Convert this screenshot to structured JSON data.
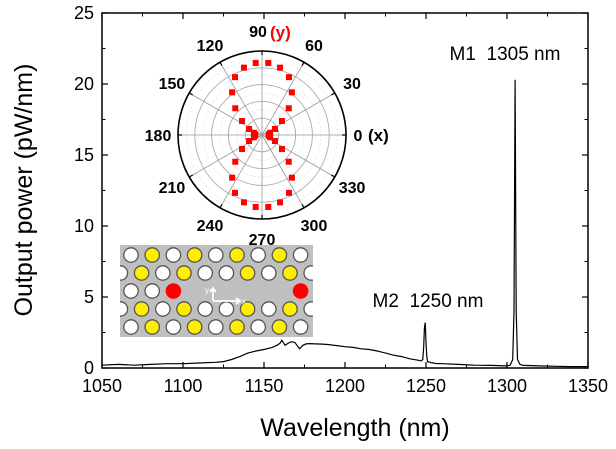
{
  "chart_data": [
    {
      "type": "line",
      "xlabel": "Wavelength (nm)",
      "ylabel": "Output  power (pW/nm)",
      "xlim": [
        1050,
        1350
      ],
      "ylim": [
        0,
        25
      ],
      "xticks": [
        1050,
        1100,
        1150,
        1200,
        1250,
        1300,
        1350
      ],
      "yticks": [
        0,
        5,
        10,
        15,
        20,
        25
      ],
      "grid": false,
      "series": [
        {
          "color": "#000000",
          "x": [
            1050,
            1060,
            1070,
            1080,
            1090,
            1100,
            1110,
            1120,
            1125,
            1130,
            1135,
            1140,
            1145,
            1150,
            1155,
            1158,
            1160,
            1161,
            1163,
            1165,
            1167,
            1169,
            1171,
            1172,
            1174,
            1176,
            1178,
            1182,
            1186,
            1190,
            1195,
            1200,
            1205,
            1210,
            1215,
            1220,
            1225,
            1230,
            1235,
            1240,
            1245,
            1247,
            1248,
            1248.6,
            1249,
            1249.5,
            1250,
            1250.5,
            1251,
            1253,
            1256,
            1260,
            1270,
            1280,
            1290,
            1300,
            1302,
            1303.5,
            1304.3,
            1305,
            1305.7,
            1306.5,
            1308,
            1310,
            1320,
            1330,
            1340,
            1350
          ],
          "y": [
            0.2,
            0.25,
            0.2,
            0.25,
            0.3,
            0.3,
            0.35,
            0.4,
            0.45,
            0.6,
            0.8,
            1.05,
            1.2,
            1.3,
            1.45,
            1.6,
            1.75,
            1.95,
            1.6,
            1.75,
            1.85,
            1.8,
            1.5,
            1.35,
            1.6,
            1.7,
            1.72,
            1.7,
            1.68,
            1.65,
            1.58,
            1.5,
            1.45,
            1.35,
            1.3,
            1.2,
            1.05,
            0.9,
            0.8,
            0.65,
            0.55,
            0.5,
            0.6,
            1.5,
            2.8,
            3.2,
            1.8,
            0.8,
            0.45,
            0.38,
            0.32,
            0.3,
            0.25,
            0.2,
            0.18,
            0.15,
            0.2,
            0.6,
            4.0,
            20.3,
            4.0,
            0.6,
            0.25,
            0.18,
            0.15,
            0.12,
            0.1,
            0.1
          ]
        }
      ],
      "annotations": [
        {
          "text": "M1  1305 nm",
          "x": 1305,
          "y": 20.3
        },
        {
          "text": "M2  1250 nm",
          "x": 1250,
          "y": 3.2
        }
      ]
    },
    {
      "type": "scatter",
      "subtype": "polar",
      "angle_labels": [
        "0",
        "30",
        "60",
        "90",
        "120",
        "150",
        "180",
        "210",
        "240",
        "270",
        "300",
        "330"
      ],
      "axis_tags": {
        "x": "(x)",
        "y": "(y)"
      },
      "marker_color": "#ff0000",
      "y_tag_color": "#ff0000",
      "theta_deg": [
        5,
        15,
        25,
        35,
        45,
        55,
        65,
        75,
        85,
        95,
        105,
        115,
        125,
        135,
        145,
        155,
        165,
        175,
        185,
        195,
        205,
        215,
        225,
        235,
        245,
        255,
        265,
        275,
        285,
        295,
        305,
        315,
        325,
        335,
        345,
        355
      ],
      "r_normalized": [
        0.08,
        0.1,
        0.17,
        0.29,
        0.45,
        0.62,
        0.76,
        0.83,
        0.86,
        0.86,
        0.83,
        0.76,
        0.62,
        0.45,
        0.29,
        0.17,
        0.1,
        0.08,
        0.08,
        0.1,
        0.17,
        0.29,
        0.45,
        0.62,
        0.76,
        0.83,
        0.86,
        0.86,
        0.83,
        0.76,
        0.62,
        0.45,
        0.29,
        0.17,
        0.1,
        0.08
      ]
    }
  ],
  "lattice_inset": {
    "background": "#bfbfbf",
    "hole_colors": {
      "W": "#ffffff",
      "Y": "#ffee00",
      "R": "#ff0000"
    },
    "rows": [
      "WYWYWYWYW",
      "hYWYWWYWYh",
      "WWR-----RWW",
      "hYWYWWYWYh",
      "WYWYWYWYW"
    ],
    "axis_x": "x",
    "axis_y": "y"
  }
}
